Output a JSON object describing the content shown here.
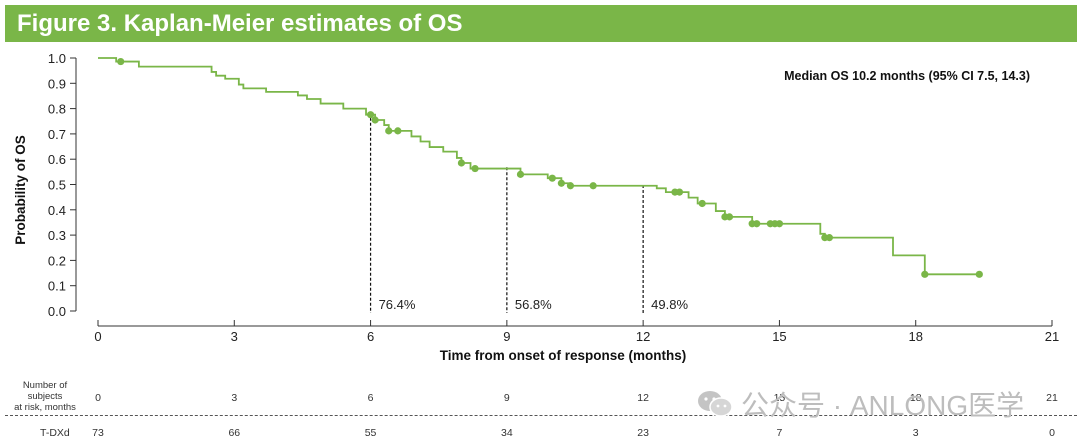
{
  "header": {
    "title": "Figure 3. Kaplan-Meier estimates of OS"
  },
  "chart_data": {
    "type": "line",
    "step": true,
    "xlabel": "Time from onset of response (months)",
    "ylabel": "Probability of OS",
    "xlim": [
      0,
      21
    ],
    "ylim": [
      0,
      1
    ],
    "xticks": [
      "0",
      "3",
      "6",
      "9",
      "12",
      "15",
      "18",
      "21"
    ],
    "yticks": [
      "0.0",
      "0.1",
      "0.2",
      "0.3",
      "0.4",
      "0.5",
      "0.6",
      "0.7",
      "0.8",
      "0.9",
      "1.0"
    ],
    "grid": false,
    "series": [
      {
        "color": "#7ab648",
        "steps": [
          [
            0,
            1.0
          ],
          [
            0.4,
            0.986
          ],
          [
            0.9,
            0.966
          ],
          [
            2.5,
            0.945
          ],
          [
            2.6,
            0.93
          ],
          [
            2.8,
            0.918
          ],
          [
            3.1,
            0.895
          ],
          [
            3.2,
            0.88
          ],
          [
            3.7,
            0.866
          ],
          [
            4.4,
            0.852
          ],
          [
            4.6,
            0.838
          ],
          [
            4.9,
            0.82
          ],
          [
            5.4,
            0.8
          ],
          [
            5.9,
            0.776
          ],
          [
            6.1,
            0.755
          ],
          [
            6.3,
            0.735
          ],
          [
            6.4,
            0.712
          ],
          [
            6.9,
            0.69
          ],
          [
            7.1,
            0.67
          ],
          [
            7.3,
            0.648
          ],
          [
            7.6,
            0.63
          ],
          [
            7.9,
            0.605
          ],
          [
            8.0,
            0.585
          ],
          [
            8.2,
            0.563
          ],
          [
            9.3,
            0.54
          ],
          [
            9.9,
            0.525
          ],
          [
            10.2,
            0.505
          ],
          [
            10.4,
            0.495
          ],
          [
            12.3,
            0.485
          ],
          [
            12.5,
            0.47
          ],
          [
            13.0,
            0.448
          ],
          [
            13.2,
            0.425
          ],
          [
            13.6,
            0.395
          ],
          [
            13.8,
            0.372
          ],
          [
            14.4,
            0.345
          ],
          [
            15.9,
            0.305
          ],
          [
            16.0,
            0.29
          ],
          [
            17.5,
            0.22
          ],
          [
            18.2,
            0.145
          ]
        ],
        "end_x": 19.4,
        "censored_x": [
          0.5,
          6.0,
          6.1,
          6.4,
          6.6,
          8.0,
          8.3,
          9.3,
          10.0,
          10.2,
          10.4,
          10.9,
          12.7,
          12.8,
          13.3,
          13.8,
          13.9,
          14.4,
          14.5,
          14.8,
          14.9,
          15.0,
          16.0,
          16.1,
          18.2,
          19.4
        ]
      }
    ],
    "landmarks": [
      {
        "x": 6,
        "y": 0.764,
        "label": "76.4%"
      },
      {
        "x": 9,
        "y": 0.568,
        "label": "56.8%"
      },
      {
        "x": 12,
        "y": 0.498,
        "label": "49.8%"
      }
    ],
    "annotation": "Median OS 10.2 months (95% CI 7.5, 14.3)"
  },
  "risk_table": {
    "header": [
      "Number of",
      "subjects",
      "at risk, months"
    ],
    "months": [
      "0",
      "3",
      "6",
      "9",
      "12",
      "15",
      "18",
      "21"
    ],
    "row_label": "T-DXd",
    "counts": [
      "73",
      "66",
      "55",
      "34",
      "23",
      "7",
      "3",
      "0"
    ]
  },
  "watermark": {
    "text": "公众号 · ANLONG医学"
  }
}
